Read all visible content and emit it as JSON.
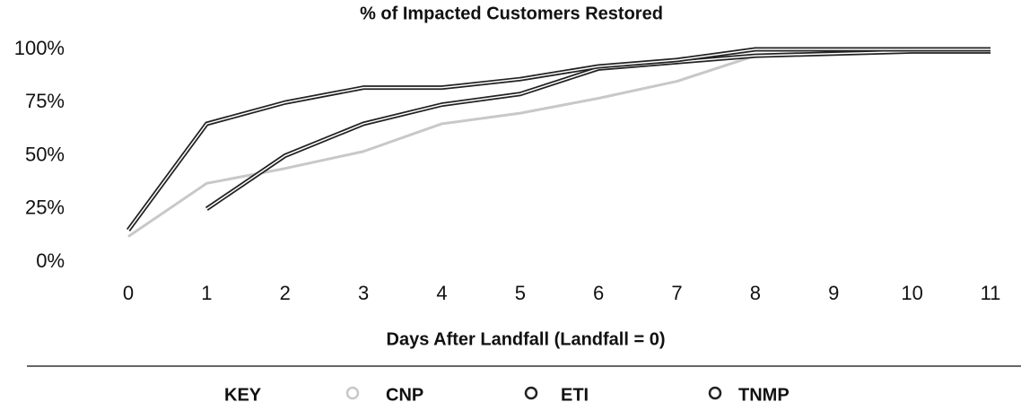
{
  "chart_data": {
    "type": "line",
    "title": "% of Impacted Customers Restored",
    "x_label": "Days After Landfall (Landfall = 0)",
    "legend_title": "KEY",
    "x": [
      0,
      1,
      2,
      3,
      4,
      5,
      6,
      7,
      8,
      9,
      10,
      11
    ],
    "xlim": [
      0,
      11
    ],
    "xticks": [
      0,
      1,
      2,
      3,
      4,
      5,
      6,
      7,
      8,
      9,
      10,
      11
    ],
    "ylim": [
      0,
      100
    ],
    "yticks": [
      {
        "value": 0,
        "label": "0%"
      },
      {
        "value": 25,
        "label": "25%"
      },
      {
        "value": 50,
        "label": "50%"
      },
      {
        "value": 75,
        "label": "75%"
      },
      {
        "value": 100,
        "label": "100%"
      }
    ],
    "grid": false,
    "legend": "bottom",
    "series": [
      {
        "name": "CNP",
        "color": "#c8c8c8",
        "values": [
          12,
          37,
          44,
          52,
          65,
          70,
          77,
          85,
          97,
          98,
          99,
          99
        ]
      },
      {
        "name": "ETI",
        "color": "#222222",
        "values": [
          null,
          25,
          50,
          65,
          74,
          79,
          91,
          94,
          97,
          98,
          99,
          99
        ]
      },
      {
        "name": "TNMP",
        "color": "#222222",
        "values": [
          15,
          65,
          75,
          82,
          82,
          86,
          92,
          95,
          100,
          100,
          100,
          100
        ]
      }
    ]
  }
}
